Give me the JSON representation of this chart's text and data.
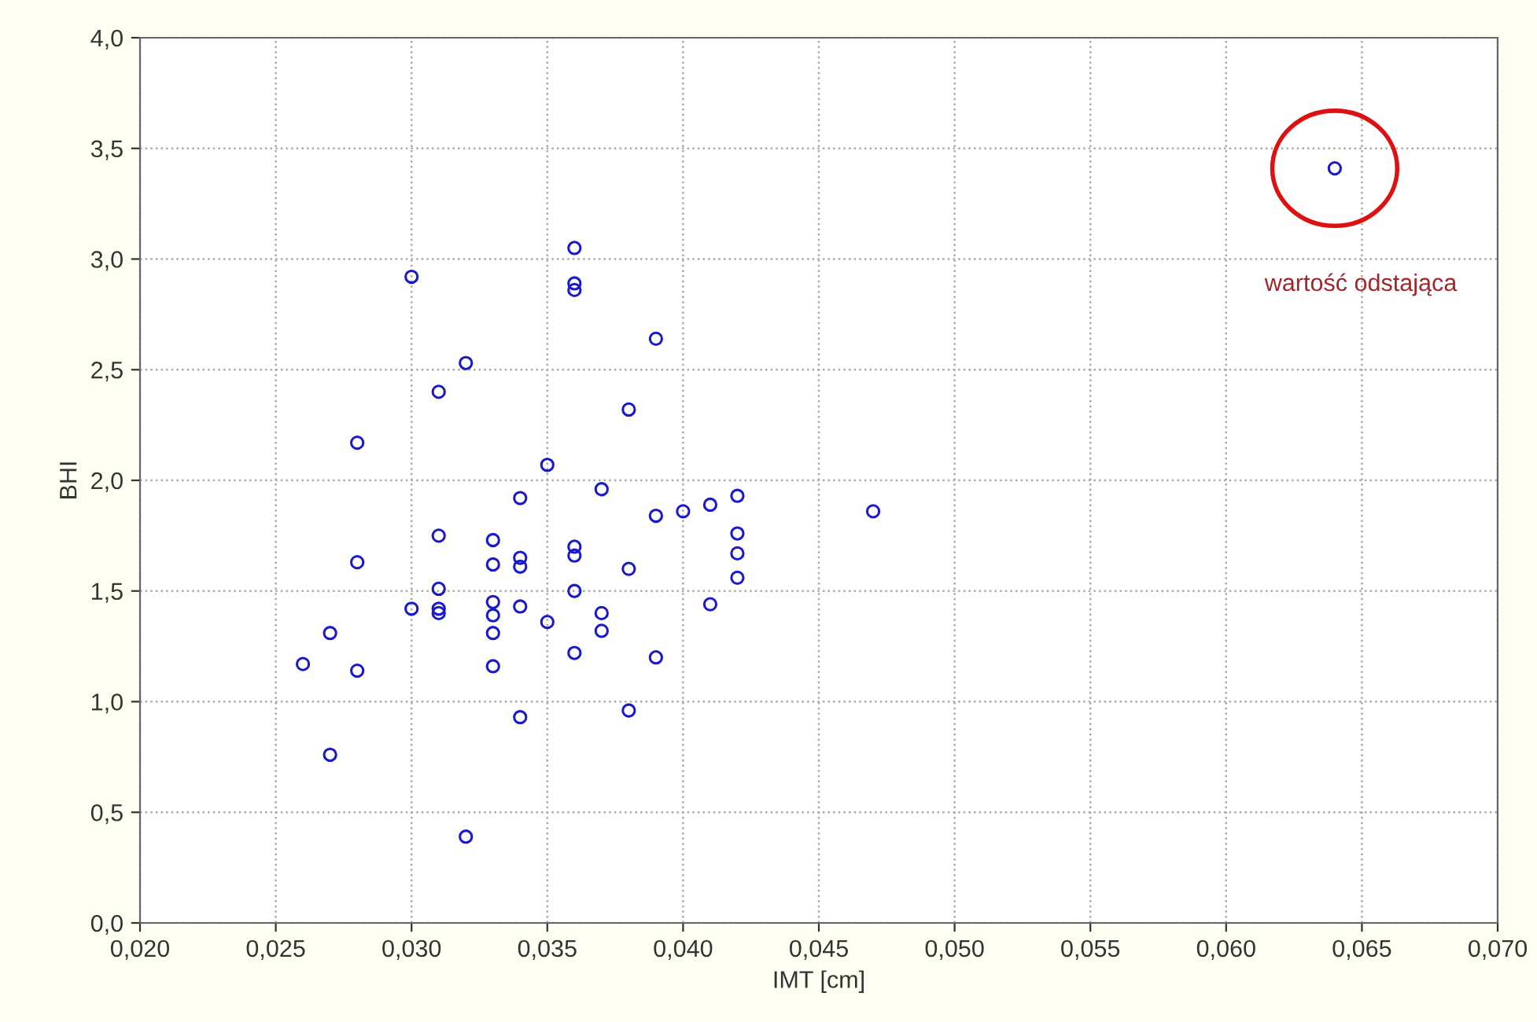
{
  "chart_data": {
    "type": "scatter",
    "xlabel": "IMT [cm]",
    "ylabel": "BHI",
    "x": [
      0.026,
      0.027,
      0.027,
      0.028,
      0.028,
      0.028,
      0.03,
      0.03,
      0.031,
      0.031,
      0.031,
      0.031,
      0.031,
      0.032,
      0.032,
      0.033,
      0.033,
      0.033,
      0.033,
      0.033,
      0.033,
      0.034,
      0.034,
      0.034,
      0.034,
      0.034,
      0.035,
      0.035,
      0.036,
      0.036,
      0.036,
      0.036,
      0.036,
      0.036,
      0.036,
      0.037,
      0.037,
      0.037,
      0.038,
      0.038,
      0.038,
      0.039,
      0.039,
      0.039,
      0.04,
      0.041,
      0.041,
      0.042,
      0.042,
      0.042,
      0.042,
      0.047,
      0.064
    ],
    "series": [
      {
        "color": "#1a1acc",
        "values": [
          1.17,
          1.31,
          0.76,
          2.17,
          1.63,
          1.14,
          2.92,
          1.42,
          2.4,
          1.75,
          1.51,
          1.42,
          1.4,
          2.53,
          0.39,
          1.73,
          1.62,
          1.45,
          1.39,
          1.31,
          1.16,
          1.92,
          1.65,
          1.61,
          1.43,
          0.93,
          2.07,
          1.36,
          3.05,
          2.89,
          2.86,
          1.7,
          1.66,
          1.5,
          1.22,
          1.96,
          1.4,
          1.32,
          2.32,
          1.6,
          0.96,
          2.64,
          1.84,
          1.2,
          1.86,
          1.89,
          1.44,
          1.93,
          1.76,
          1.67,
          1.56,
          1.86,
          3.41
        ]
      }
    ],
    "xlim": [
      0.02,
      0.07
    ],
    "xticks": [
      {
        "value": 0.02,
        "label": "0,020"
      },
      {
        "value": 0.025,
        "label": "0,025"
      },
      {
        "value": 0.03,
        "label": "0,030"
      },
      {
        "value": 0.035,
        "label": "0,035"
      },
      {
        "value": 0.04,
        "label": "0,040"
      },
      {
        "value": 0.045,
        "label": "0,045"
      },
      {
        "value": 0.05,
        "label": "0,050"
      },
      {
        "value": 0.055,
        "label": "0,055"
      },
      {
        "value": 0.06,
        "label": "0,060"
      },
      {
        "value": 0.065,
        "label": "0,065"
      },
      {
        "value": 0.07,
        "label": "0,070"
      }
    ],
    "ylim": [
      0,
      4
    ],
    "yticks": [
      {
        "value": 0,
        "label": "0,0"
      },
      {
        "value": 0.5,
        "label": "0,5"
      },
      {
        "value": 1,
        "label": "1,0"
      },
      {
        "value": 1.5,
        "label": "1,5"
      },
      {
        "value": 2,
        "label": "2,0"
      },
      {
        "value": 2.5,
        "label": "2,5"
      },
      {
        "value": 3,
        "label": "3,0"
      },
      {
        "value": 3.5,
        "label": "3,5"
      },
      {
        "value": 4,
        "label": "4,0"
      }
    ],
    "grid": true,
    "marker": "circle",
    "annotations": [
      "wartość odstająca"
    ]
  }
}
